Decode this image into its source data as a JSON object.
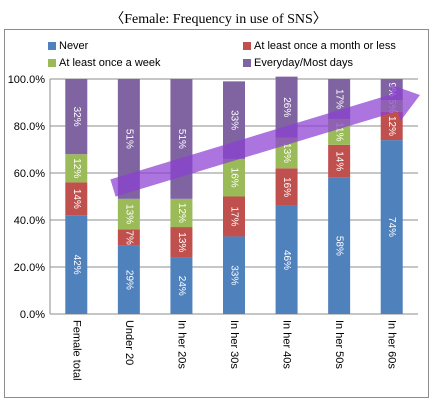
{
  "chart_data": {
    "type": "bar",
    "stacked": true,
    "title": "〈Female: Frequency in use of SNS〉",
    "categories": [
      "Female total",
      "Under 20",
      "In her 20s",
      "In her 30s",
      "In her 40s",
      "In her 50s",
      "In her 60s"
    ],
    "series": [
      {
        "name": "Never",
        "color": "#4f81bd",
        "values": [
          42,
          29,
          24,
          33,
          46,
          58,
          74
        ],
        "labels": [
          "42%",
          "29%",
          "24%",
          "33%",
          "46%",
          "58%",
          "74%"
        ]
      },
      {
        "name": "At least once a month or less",
        "color": "#c0504d",
        "values": [
          14,
          7,
          13,
          17,
          16,
          14,
          12
        ],
        "labels": [
          "14%",
          "7%",
          "13%",
          "17%",
          "16%",
          "14%",
          "12%"
        ]
      },
      {
        "name": "At least once a week",
        "color": "#9bbb59",
        "values": [
          12,
          13,
          12,
          16,
          13,
          11,
          5
        ],
        "labels": [
          "12%",
          "13%",
          "12%",
          "16%",
          "13%",
          "11%",
          "5%"
        ]
      },
      {
        "name": "Everyday/Most days",
        "color": "#8064a2",
        "values": [
          32,
          51,
          51,
          33,
          26,
          17,
          9
        ],
        "labels": [
          "32%",
          "51%",
          "51%",
          "33%",
          "26%",
          "17%",
          "9%"
        ]
      }
    ],
    "ylim": [
      0,
      100
    ],
    "yticks": [
      "0.0%",
      "20.0%",
      "40.0%",
      "60.0%",
      "80.0%",
      "100.0%"
    ],
    "grid": true,
    "legend_position": "top",
    "annotation": "purple upward arrow from Under 20 to In her 60s"
  }
}
